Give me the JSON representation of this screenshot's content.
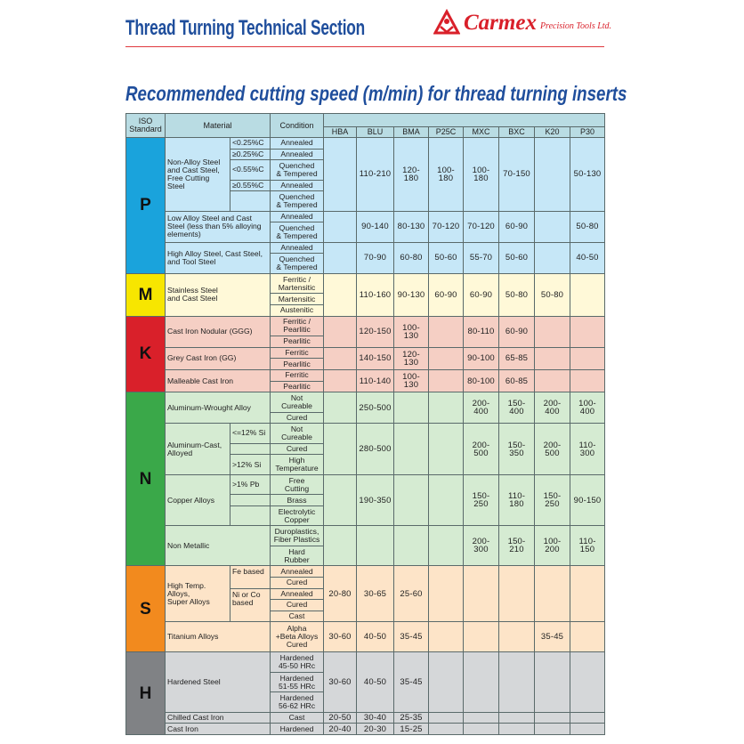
{
  "header": {
    "title": "Thread Turning Technical Section",
    "brand": "Carmex",
    "brand_tagline": "Precision Tools Ltd.",
    "brand_color": "#d9202a",
    "title_color": "#1f4e9c"
  },
  "subtitle": "Recommended cutting speed (m/min) for thread turning inserts",
  "table": {
    "col_iso": "ISO\nStandard",
    "col_material": "Material",
    "col_condition": "Condition",
    "grades": [
      "HBA",
      "BLU",
      "BMA",
      "P25C",
      "MXC",
      "BXC",
      "K20",
      "P30"
    ],
    "groups": [
      {
        "letter": "P",
        "color": "#1aa3dc",
        "bg": "#c6e7f7",
        "materials": [
          {
            "name": "Non-Alloy Steel\nand Cast Steel,\nFree Cutting Steel",
            "subs": [
              "<0.25%C",
              "≥0.25%C",
              "<0.55%C",
              "≥0.55%C",
              ""
            ],
            "conditions": [
              "Annealed",
              "Annealed",
              "Quenched\n& Tempered",
              "Annealed",
              "Quenched\n& Tempered"
            ],
            "values": [
              "",
              "110-210",
              "120-180",
              "100-180",
              "100-180",
              "70-150",
              "",
              "50-130"
            ]
          },
          {
            "name": "Low Alloy Steel and Cast\nSteel (less than 5% alloying\nelements)",
            "conditions": [
              "Annealed",
              "Quenched\n& Tempered"
            ],
            "values": [
              "",
              "90-140",
              "80-130",
              "70-120",
              "70-120",
              "60-90",
              "",
              "50-80"
            ]
          },
          {
            "name": "High Alloy Steel, Cast Steel,\nand Tool Steel",
            "conditions": [
              "Annealed",
              "Quenched\n& Tempered"
            ],
            "values": [
              "",
              "70-90",
              "60-80",
              "50-60",
              "55-70",
              "50-60",
              "",
              "40-50"
            ]
          }
        ]
      },
      {
        "letter": "M",
        "color": "#f7e600",
        "bg": "#fff9d8",
        "materials": [
          {
            "name": "Stainless Steel\nand Cast Steel",
            "conditions": [
              "Ferritic /\nMartensitic",
              "Martensitic",
              "Austenitic"
            ],
            "values": [
              "",
              "110-160",
              "90-130",
              "60-90",
              "60-90",
              "50-80",
              "50-80",
              ""
            ]
          }
        ]
      },
      {
        "letter": "K",
        "color": "#d9202a",
        "bg": "#f5cfc4",
        "materials": [
          {
            "name": "Cast Iron Nodular (GGG)",
            "conditions": [
              "Ferritic /\nPearlitic",
              "Pearlitic"
            ],
            "values": [
              "",
              "120-150",
              "100-130",
              "",
              "80-110",
              "60-90",
              "",
              ""
            ]
          },
          {
            "name": "Grey Cast Iron (GG)",
            "conditions": [
              "Ferritic",
              "Pearlitic"
            ],
            "values": [
              "",
              "140-150",
              "120-130",
              "",
              "90-100",
              "65-85",
              "",
              ""
            ]
          },
          {
            "name": "Malleable Cast Iron",
            "conditions": [
              "Ferritic",
              "Pearlitic"
            ],
            "values": [
              "",
              "110-140",
              "100-130",
              "",
              "80-100",
              "60-85",
              "",
              ""
            ]
          }
        ]
      },
      {
        "letter": "N",
        "color": "#3aa849",
        "bg": "#d5ebd2",
        "materials": [
          {
            "name": "Aluminum-Wrought Alloy",
            "conditions": [
              "Not\nCureable",
              "Cured"
            ],
            "values": [
              "",
              "250-500",
              "",
              "",
              "200-400",
              "150-400",
              "200-400",
              "100-400"
            ]
          },
          {
            "name": "Aluminum-Cast,\nAlloyed",
            "subs": [
              "<=12% Si",
              "",
              ">12% Si"
            ],
            "conditions": [
              "Not\nCureable",
              "Cured",
              "High\nTemperature"
            ],
            "values": [
              "",
              "280-500",
              "",
              "",
              "200-500",
              "150-350",
              "200-500",
              "110-300"
            ]
          },
          {
            "name": "Copper Alloys",
            "subs": [
              ">1% Pb",
              "",
              ""
            ],
            "conditions": [
              "Free\nCutting",
              "Brass",
              "Electrolytic\nCopper"
            ],
            "values": [
              "",
              "190-350",
              "",
              "",
              "150-250",
              "110-180",
              "150-250",
              "90-150"
            ]
          },
          {
            "name": "Non Metallic",
            "conditions": [
              "Duroplastics,\nFiber Plastics",
              "Hard\nRubber"
            ],
            "values": [
              "",
              "",
              "",
              "",
              "200-300",
              "150-210",
              "100-200",
              "110-150"
            ]
          }
        ]
      },
      {
        "letter": "S",
        "color": "#f28a1e",
        "bg": "#fde4c8",
        "materials": [
          {
            "name": "High Temp. Alloys,\nSuper Alloys",
            "subs": [
              "Fe based",
              null,
              "Ni or Co\nbased",
              null,
              null
            ],
            "conditions": [
              "Annealed",
              "Cured",
              "Annealed",
              "Cured",
              "Cast"
            ],
            "values": [
              "20-80",
              "30-65",
              "25-60",
              "",
              "",
              "",
              "",
              ""
            ]
          },
          {
            "name": "Titanium Alloys",
            "conditions": [
              "Alpha\n+Beta Alloys\nCured"
            ],
            "values": [
              "30-60",
              "40-50",
              "35-45",
              "",
              "",
              "",
              "35-45",
              ""
            ]
          }
        ]
      },
      {
        "letter": "H",
        "color": "#808285",
        "bg": "#d5d7d9",
        "materials": [
          {
            "name": "Hardened Steel",
            "conditions": [
              "Hardened\n45-50 HRc",
              "Hardened\n51-55 HRc",
              "Hardened\n56-62 HRc"
            ],
            "values": [
              "30-60",
              "40-50",
              "35-45",
              "",
              "",
              "",
              "",
              ""
            ]
          },
          {
            "name": "Chilled Cast Iron",
            "conditions": [
              "Cast"
            ],
            "values": [
              "20-50",
              "30-40",
              "25-35",
              "",
              "",
              "",
              "",
              ""
            ]
          },
          {
            "name": "Cast Iron",
            "conditions": [
              "Hardened"
            ],
            "values": [
              "20-40",
              "20-30",
              "15-25",
              "",
              "",
              "",
              "",
              ""
            ]
          }
        ]
      }
    ]
  }
}
